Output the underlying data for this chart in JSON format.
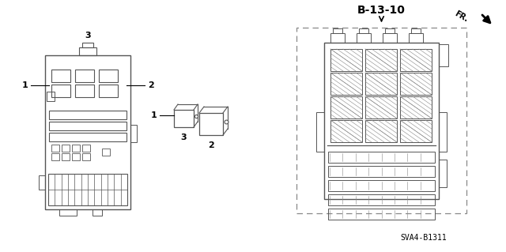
{
  "bg_color": "#ffffff",
  "title_label": "B-13-10",
  "part_label": "SVA4-B1311",
  "fr_label": "FR.",
  "label1": "1",
  "label2": "2",
  "label3": "3",
  "figsize": [
    6.4,
    3.19
  ],
  "dpi": 100
}
